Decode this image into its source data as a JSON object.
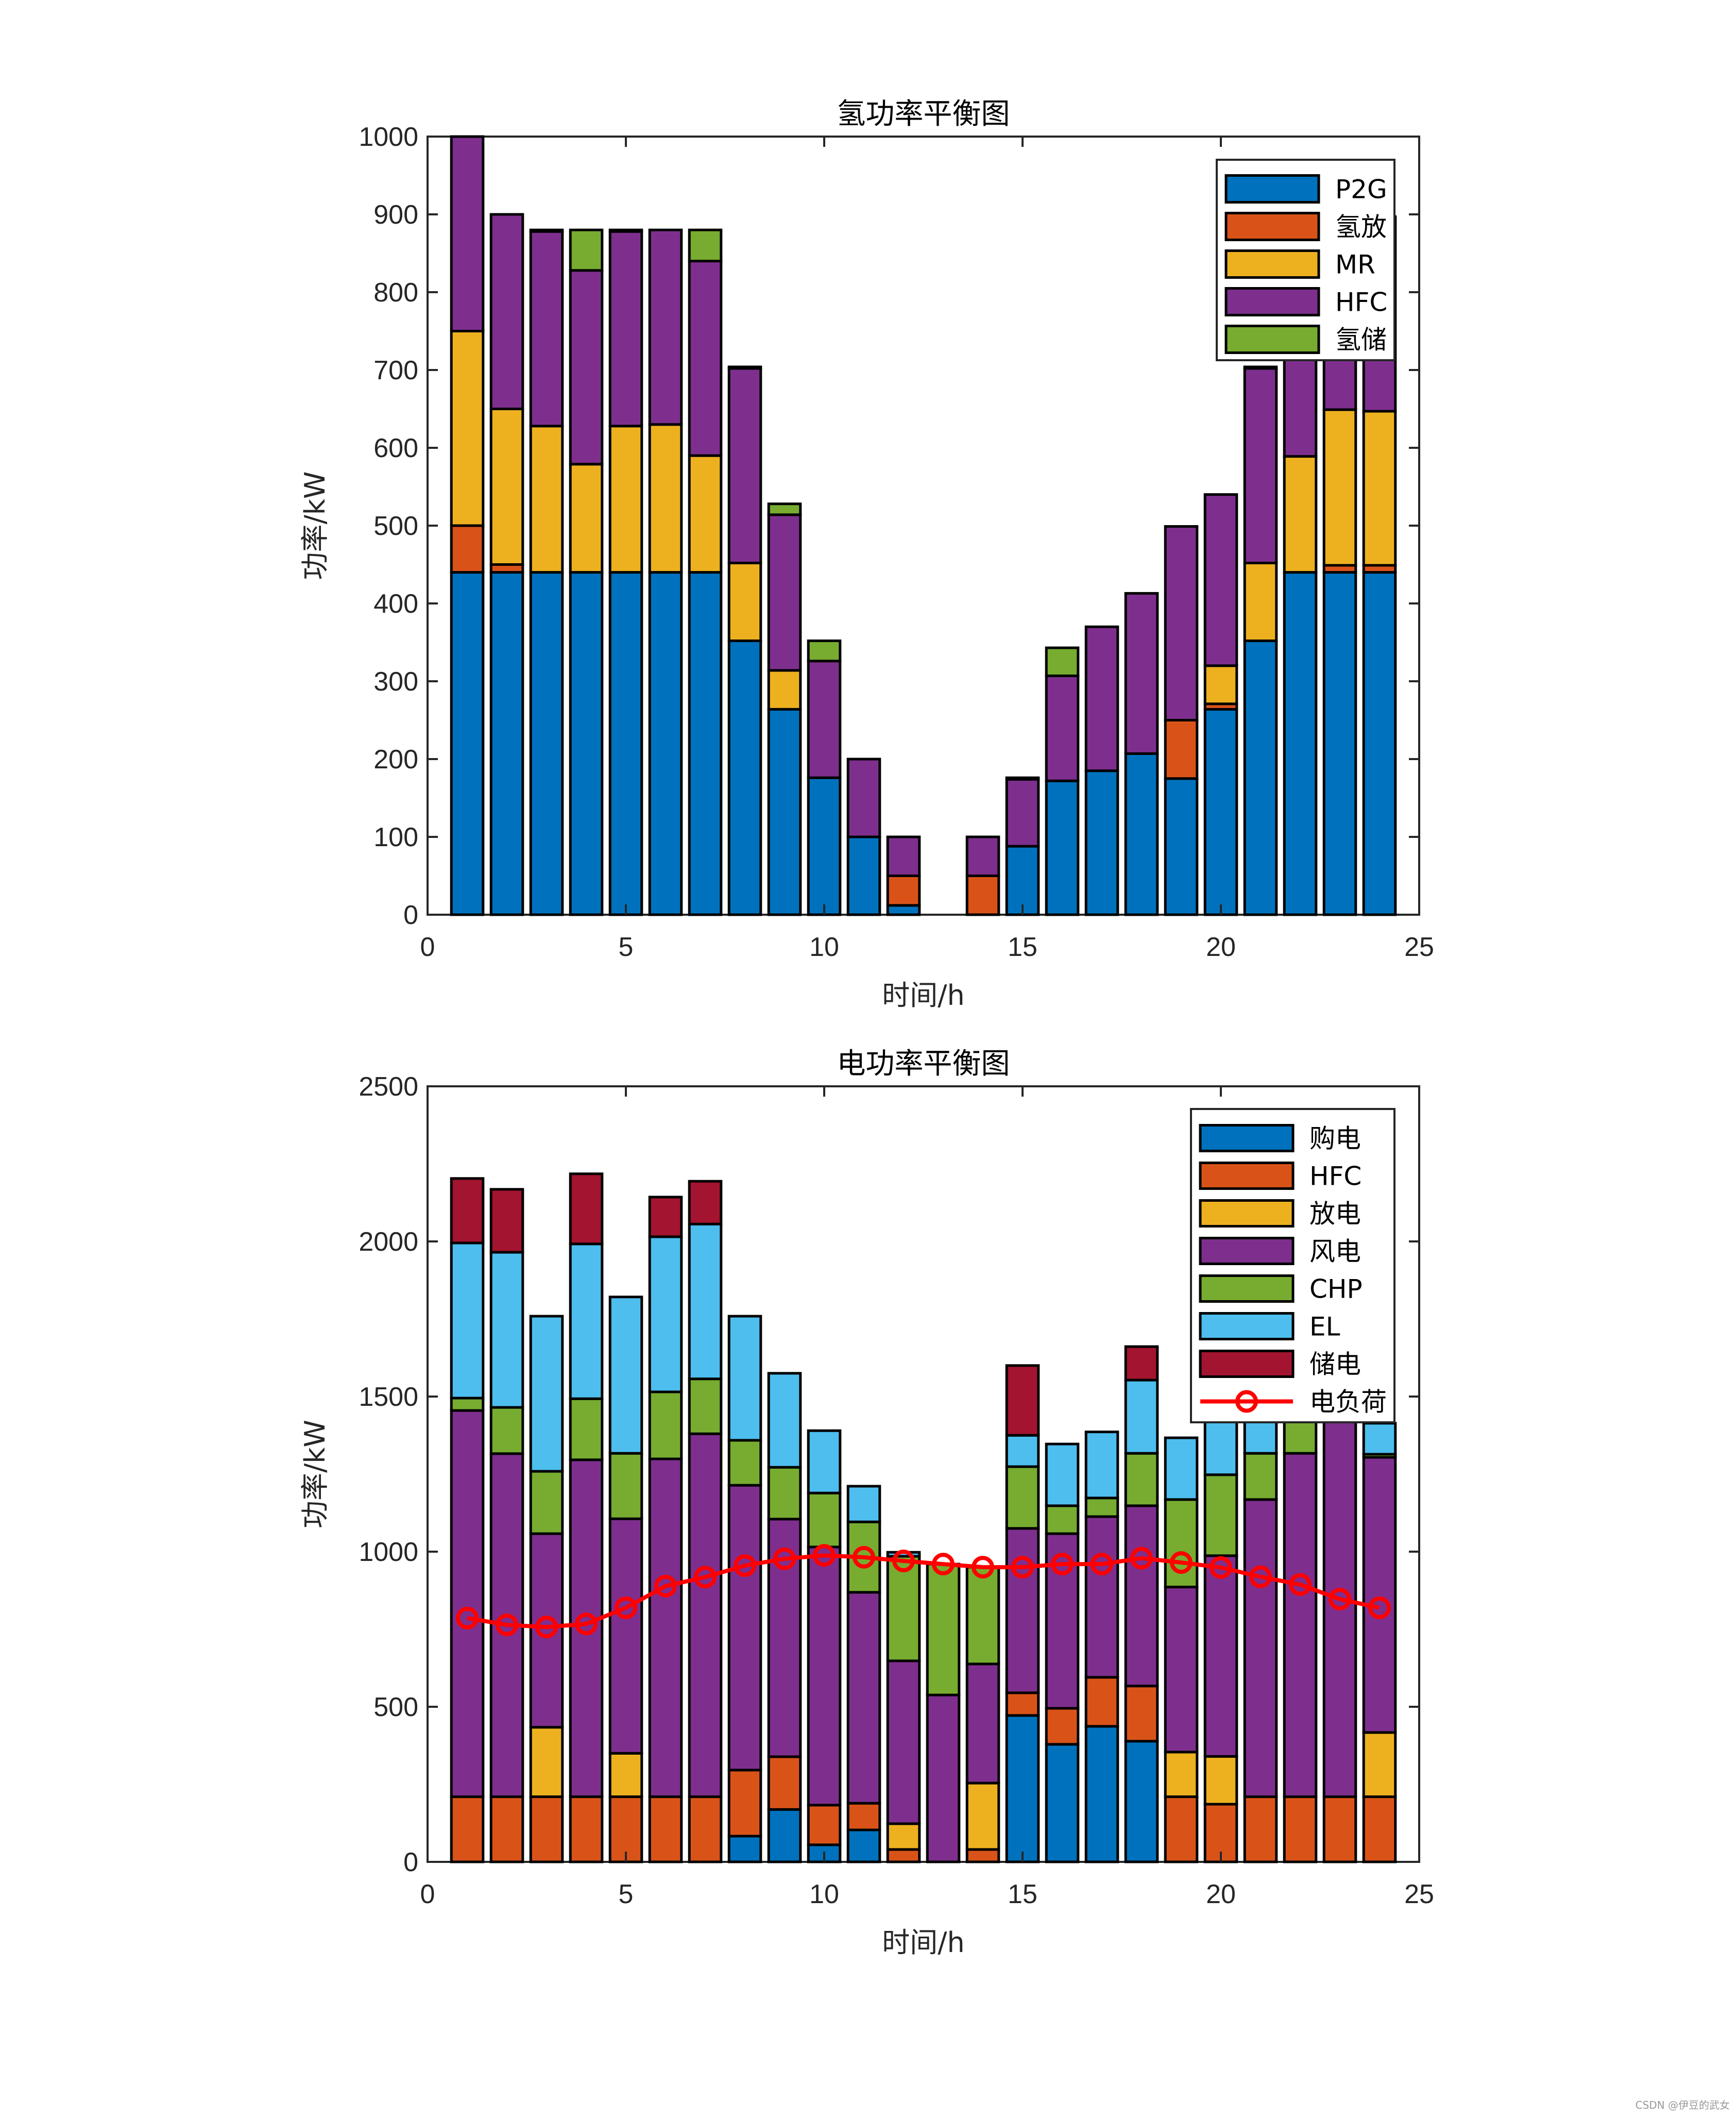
{
  "chart_data": [
    {
      "type": "bar",
      "stacked": true,
      "title": "氢功率平衡图",
      "xlabel": "时间/h",
      "ylabel": "功率/kW",
      "xlim": [
        0,
        25
      ],
      "ylim": [
        0,
        1000
      ],
      "xticks": [
        0,
        5,
        10,
        15,
        20,
        25
      ],
      "yticks": [
        0,
        100,
        200,
        300,
        400,
        500,
        600,
        700,
        800,
        900,
        1000
      ],
      "grid": false,
      "legend_position": "top-right",
      "categories": [
        1,
        2,
        3,
        4,
        5,
        6,
        7,
        8,
        9,
        10,
        11,
        12,
        13,
        14,
        15,
        16,
        17,
        18,
        19,
        20,
        21,
        22,
        23,
        24
      ],
      "series": [
        {
          "name": "P2G",
          "color": "#0072BD",
          "values": [
            440,
            440,
            440,
            440,
            440,
            440,
            440,
            352,
            264,
            176,
            100,
            12,
            0,
            0,
            88,
            172,
            185,
            207,
            175,
            264,
            352,
            440,
            440,
            440
          ]
        },
        {
          "name": "氢放",
          "color": "#D95319",
          "values": [
            60,
            10,
            0,
            0,
            0,
            0,
            0,
            0,
            0,
            0,
            0,
            38,
            0,
            50,
            0,
            0,
            0,
            0,
            75,
            7,
            0,
            0,
            9,
            9
          ]
        },
        {
          "name": "MR",
          "color": "#EDB120",
          "values": [
            250,
            200,
            188,
            139,
            188,
            190,
            150,
            100,
            50,
            0,
            0,
            0,
            0,
            0,
            0,
            0,
            0,
            0,
            0,
            49,
            100,
            149,
            200,
            198
          ]
        },
        {
          "name": "HFC",
          "color": "#7E2F8E",
          "values": [
            250,
            250,
            250,
            249,
            250,
            250,
            250,
            250,
            200,
            150,
            100,
            50,
            0,
            50,
            86,
            135,
            185,
            206,
            249,
            220,
            250,
            250,
            250,
            250
          ]
        },
        {
          "name": "氢储",
          "color": "#77AC30",
          "values": [
            0,
            0,
            2,
            52,
            2,
            0,
            40,
            2,
            14,
            26,
            0,
            0,
            0,
            0,
            2,
            36,
            0,
            0,
            0,
            0,
            2,
            0,
            0,
            0
          ]
        }
      ]
    },
    {
      "type": "bar",
      "stacked": true,
      "title": "电功率平衡图",
      "xlabel": "时间/h",
      "ylabel": "功率/kW",
      "xlim": [
        0,
        25
      ],
      "ylim": [
        0,
        2500
      ],
      "xticks": [
        0,
        5,
        10,
        15,
        20,
        25
      ],
      "yticks": [
        0,
        500,
        1000,
        1500,
        2000,
        2500
      ],
      "grid": false,
      "legend_position": "top-right",
      "categories": [
        1,
        2,
        3,
        4,
        5,
        6,
        7,
        8,
        9,
        10,
        11,
        12,
        13,
        14,
        15,
        16,
        17,
        18,
        19,
        20,
        21,
        22,
        23,
        24
      ],
      "series": [
        {
          "name": "购电",
          "color": "#0072BD",
          "values": [
            0,
            0,
            0,
            0,
            0,
            0,
            0,
            83,
            169,
            55,
            103,
            0,
            0,
            0,
            472,
            379,
            437,
            389,
            0,
            0,
            0,
            0,
            0,
            0
          ]
        },
        {
          "name": "HFC",
          "color": "#D95319",
          "values": [
            210,
            210,
            210,
            210,
            210,
            210,
            210,
            213,
            170,
            128,
            86,
            40,
            0,
            40,
            73,
            116,
            158,
            178,
            210,
            186,
            210,
            210,
            210,
            210
          ]
        },
        {
          "name": "放电",
          "color": "#EDB120",
          "values": [
            0,
            0,
            224,
            0,
            140,
            0,
            0,
            0,
            0,
            0,
            0,
            83,
            0,
            214,
            0,
            0,
            0,
            0,
            144,
            154,
            0,
            0,
            0,
            207
          ]
        },
        {
          "name": "风电",
          "color": "#7E2F8E",
          "values": [
            1245,
            1106,
            624,
            1086,
            756,
            1089,
            1170,
            918,
            766,
            832,
            680,
            525,
            538,
            384,
            530,
            563,
            518,
            581,
            532,
            647,
            958,
            1107,
            1300,
            887
          ]
        },
        {
          "name": "CHP",
          "color": "#77AC30",
          "values": [
            40,
            149,
            201,
            197,
            211,
            216,
            177,
            145,
            167,
            174,
            227,
            337,
            422,
            312,
            199,
            90,
            60,
            169,
            282,
            261,
            149,
            150,
            0,
            10
          ]
        },
        {
          "name": "EL",
          "color": "#4DBEEE",
          "values": [
            500,
            500,
            500,
            499,
            504,
            500,
            499,
            400,
            303,
            201,
            115,
            13,
            0,
            0,
            101,
            199,
            213,
            236,
            199,
            200,
            200,
            60,
            100,
            100
          ]
        },
        {
          "name": "储电",
          "color": "#A2142F",
          "values": [
            208,
            203,
            0,
            226,
            0,
            128,
            138,
            0,
            0,
            0,
            0,
            0,
            0,
            0,
            225,
            0,
            0,
            108,
            0,
            0,
            0,
            0,
            0,
            0
          ]
        }
      ],
      "line_series": [
        {
          "name": "电负荷",
          "color": "#FF0000",
          "marker": "circle",
          "values": [
            786,
            764,
            757,
            767,
            819,
            889,
            918,
            955,
            977,
            988,
            982,
            970,
            960,
            950,
            950,
            960,
            960,
            979,
            965,
            949,
            919,
            894,
            847,
            819
          ]
        }
      ]
    }
  ],
  "watermark": "CSDN @伊豆的武女"
}
